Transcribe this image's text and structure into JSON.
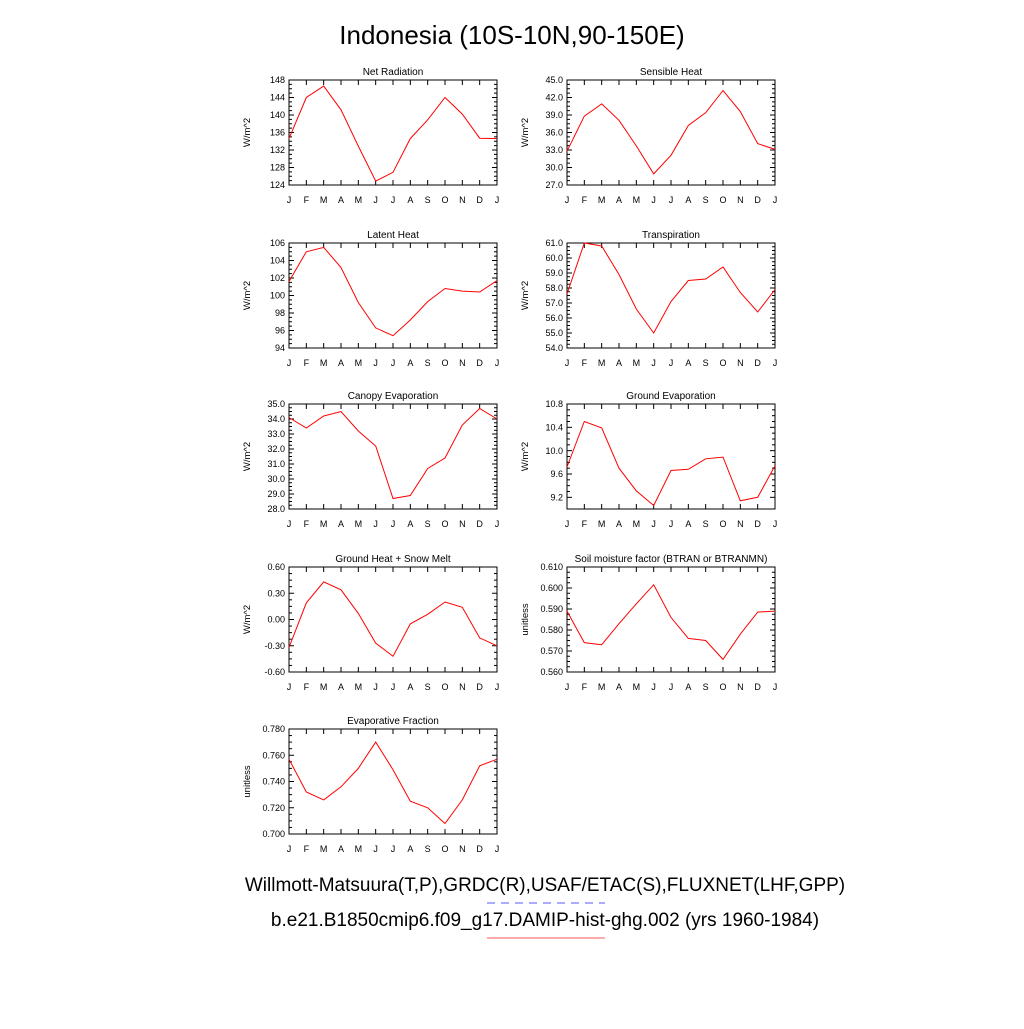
{
  "title": "Indonesia (10S-10N,90-150E)",
  "months": [
    "J",
    "F",
    "M",
    "A",
    "M",
    "J",
    "J",
    "A",
    "S",
    "O",
    "N",
    "D",
    "J"
  ],
  "line_color": "#ff0000",
  "footer": {
    "obs_line": "Willmott-Matsuura(T,P),GRDC(R),USAF/ETAC(S),FLUXNET(LHF,GPP)",
    "obs_color": "#5555ff",
    "model_line": "b.e21.B1850cmip6.f09_g17.DAMIP-hist-ghg.002 (yrs 1960-1984)",
    "model_color": "#ff5555"
  },
  "chart_data": [
    {
      "type": "line",
      "title": "Net Radiation",
      "ylabel": "W/m^2",
      "x": [
        "J",
        "F",
        "M",
        "A",
        "M",
        "J",
        "J",
        "A",
        "S",
        "O",
        "N",
        "D",
        "J"
      ],
      "ylim": [
        124,
        148
      ],
      "yticks": [
        "124",
        "128",
        "132",
        "136",
        "140",
        "144",
        "148"
      ],
      "values": [
        134.6,
        144.0,
        146.6,
        141.2,
        132.9,
        124.9,
        126.9,
        134.6,
        138.9,
        144.0,
        140.2,
        134.7,
        134.6
      ]
    },
    {
      "type": "line",
      "title": "Sensible Heat",
      "ylabel": "W/m^2",
      "x": [
        "J",
        "F",
        "M",
        "A",
        "M",
        "J",
        "J",
        "A",
        "S",
        "O",
        "N",
        "D",
        "J"
      ],
      "ylim": [
        27,
        45
      ],
      "yticks": [
        "27.0",
        "30.0",
        "33.0",
        "36.0",
        "39.0",
        "42.0",
        "45.0"
      ],
      "values": [
        32.8,
        38.8,
        40.9,
        38.1,
        33.7,
        28.9,
        32.1,
        37.2,
        39.4,
        43.2,
        39.6,
        34.1,
        33.1
      ]
    },
    {
      "type": "line",
      "title": "Latent Heat",
      "ylabel": "W/m^2",
      "x": [
        "J",
        "F",
        "M",
        "A",
        "M",
        "J",
        "J",
        "A",
        "S",
        "O",
        "N",
        "D",
        "J"
      ],
      "ylim": [
        94,
        106
      ],
      "yticks": [
        "94",
        "96",
        "98",
        "100",
        "102",
        "104",
        "106"
      ],
      "values": [
        101.6,
        105.0,
        105.5,
        103.2,
        99.2,
        96.3,
        95.4,
        97.2,
        99.3,
        100.8,
        100.5,
        100.4,
        101.7
      ]
    },
    {
      "type": "line",
      "title": "Transpiration",
      "ylabel": "W/m^2",
      "x": [
        "J",
        "F",
        "M",
        "A",
        "M",
        "J",
        "J",
        "A",
        "S",
        "O",
        "N",
        "D",
        "J"
      ],
      "ylim": [
        54,
        61
      ],
      "yticks": [
        "54.0",
        "55.0",
        "56.0",
        "57.0",
        "58.0",
        "59.0",
        "60.0",
        "61.0"
      ],
      "values": [
        57.6,
        61.0,
        60.8,
        58.9,
        56.6,
        55.0,
        57.1,
        58.5,
        58.6,
        59.4,
        57.7,
        56.4,
        57.9
      ]
    },
    {
      "type": "line",
      "title": "Canopy Evaporation",
      "ylabel": "W/m^2",
      "x": [
        "J",
        "F",
        "M",
        "A",
        "M",
        "J",
        "J",
        "A",
        "S",
        "O",
        "N",
        "D",
        "J"
      ],
      "ylim": [
        28,
        35
      ],
      "yticks": [
        "28.0",
        "29.0",
        "30.0",
        "31.0",
        "32.0",
        "33.0",
        "34.0",
        "35.0"
      ],
      "values": [
        34.1,
        33.4,
        34.2,
        34.5,
        33.2,
        32.2,
        28.7,
        28.9,
        30.7,
        31.4,
        33.6,
        34.7,
        34.0
      ]
    },
    {
      "type": "line",
      "title": "Ground Evaporation",
      "ylabel": "W/m^2",
      "x": [
        "J",
        "F",
        "M",
        "A",
        "M",
        "J",
        "J",
        "A",
        "S",
        "O",
        "N",
        "D",
        "J"
      ],
      "ylim": [
        9.0,
        10.8
      ],
      "yticks": [
        "9.2",
        "9.6",
        "10.0",
        "10.4",
        "10.8"
      ],
      "values": [
        9.72,
        10.5,
        10.39,
        9.7,
        9.31,
        9.06,
        9.66,
        9.68,
        9.86,
        9.89,
        9.14,
        9.2,
        9.74
      ]
    },
    {
      "type": "line",
      "title": "Ground Heat + Snow Melt",
      "ylabel": "W/m^2",
      "x": [
        "J",
        "F",
        "M",
        "A",
        "M",
        "J",
        "J",
        "A",
        "S",
        "O",
        "N",
        "D",
        "J"
      ],
      "ylim": [
        -0.6,
        0.6
      ],
      "yticks": [
        "-0.60",
        "-0.30",
        "0.00",
        "0.30",
        "0.60"
      ],
      "values": [
        -0.32,
        0.19,
        0.43,
        0.34,
        0.07,
        -0.27,
        -0.42,
        -0.05,
        0.06,
        0.2,
        0.14,
        -0.21,
        -0.3
      ]
    },
    {
      "type": "line",
      "title": "Soil moisture factor (BTRAN or BTRANMN)",
      "ylabel": "unitless",
      "x": [
        "J",
        "F",
        "M",
        "A",
        "M",
        "J",
        "J",
        "A",
        "S",
        "O",
        "N",
        "D",
        "J"
      ],
      "ylim": [
        0.56,
        0.61
      ],
      "yticks": [
        "0.560",
        "0.570",
        "0.580",
        "0.590",
        "0.600",
        "0.610"
      ],
      "values": [
        0.589,
        0.574,
        0.573,
        0.583,
        0.5925,
        0.6015,
        0.586,
        0.576,
        0.575,
        0.566,
        0.578,
        0.5885,
        0.589
      ]
    },
    {
      "type": "line",
      "title": "Evaporative Fraction",
      "ylabel": "unitless",
      "x": [
        "J",
        "F",
        "M",
        "A",
        "M",
        "J",
        "J",
        "A",
        "S",
        "O",
        "N",
        "D",
        "J"
      ],
      "ylim": [
        0.7,
        0.78
      ],
      "yticks": [
        "0.700",
        "0.720",
        "0.740",
        "0.760",
        "0.780"
      ],
      "values": [
        0.757,
        0.732,
        0.726,
        0.736,
        0.75,
        0.77,
        0.749,
        0.725,
        0.72,
        0.708,
        0.726,
        0.752,
        0.757
      ]
    }
  ]
}
